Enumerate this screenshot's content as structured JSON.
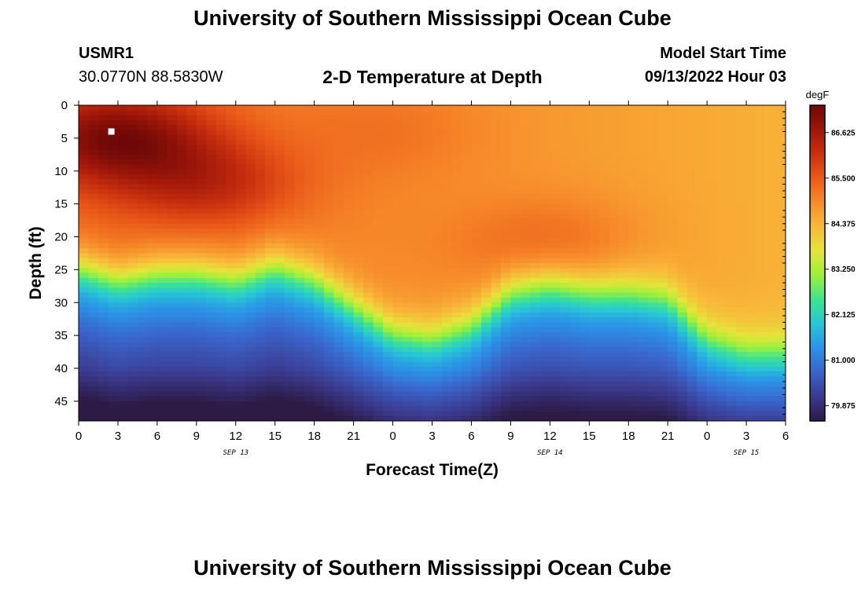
{
  "page": {
    "title": "University of Southern Mississippi Ocean Cube",
    "footer_title": "University of Southern Mississippi Ocean Cube",
    "station_id": "USMR1",
    "coordinates": "30.0770N  88.5830W",
    "subtitle": "2-D Temperature at Depth",
    "model_start_label": "Model Start Time",
    "model_start_value": "09/13/2022 Hour 03"
  },
  "chart_data": {
    "type": "heatmap",
    "title": "2-D Temperature at Depth",
    "xlabel": "Forecast Time(Z)",
    "ylabel": "Depth (ft)",
    "x_ticks": [
      "0",
      "3",
      "6",
      "9",
      "12",
      "15",
      "18",
      "21",
      "0",
      "3",
      "6",
      "9",
      "12",
      "15",
      "18",
      "21",
      "0",
      "3",
      "6"
    ],
    "x_range_hours": [
      0,
      54
    ],
    "date_labels": [
      {
        "label": "SEP 13",
        "hour": 12
      },
      {
        "label": "SEP 14",
        "hour": 36
      },
      {
        "label": "SEP 15",
        "hour": 51
      }
    ],
    "y_ticks": [
      0,
      5,
      10,
      15,
      20,
      25,
      30,
      35,
      40,
      45
    ],
    "y_range": [
      0,
      48
    ],
    "colorbar": {
      "unit": "degF",
      "labels": [
        "86.625",
        "85.500",
        "84.375",
        "83.250",
        "82.125",
        "81.000",
        "79.875"
      ],
      "min": 79.5,
      "max": 87.3,
      "stops": [
        "#2d1a45",
        "#3b3a8e",
        "#3a63c9",
        "#2b93e6",
        "#26c6d6",
        "#3fe38e",
        "#9cf03a",
        "#e6e43a",
        "#f8b93a",
        "#f78a2a",
        "#ea5a19",
        "#c9300e",
        "#9e1609",
        "#6e0808"
      ]
    },
    "marker": {
      "hour": 2.5,
      "depth": 4
    },
    "thermocline_depth_ft": [
      {
        "hour": 0,
        "depth": 25
      },
      {
        "hour": 3,
        "depth": 27
      },
      {
        "hour": 6,
        "depth": 26
      },
      {
        "hour": 9,
        "depth": 26
      },
      {
        "hour": 12,
        "depth": 27
      },
      {
        "hour": 15,
        "depth": 25
      },
      {
        "hour": 18,
        "depth": 27
      },
      {
        "hour": 21,
        "depth": 31
      },
      {
        "hour": 24,
        "depth": 35
      },
      {
        "hour": 27,
        "depth": 36
      },
      {
        "hour": 30,
        "depth": 34
      },
      {
        "hour": 33,
        "depth": 29
      },
      {
        "hour": 36,
        "depth": 28
      },
      {
        "hour": 39,
        "depth": 29
      },
      {
        "hour": 42,
        "depth": 29
      },
      {
        "hour": 45,
        "depth": 30
      },
      {
        "hour": 48,
        "depth": 36
      },
      {
        "hour": 51,
        "depth": 38
      },
      {
        "hour": 54,
        "depth": 38
      }
    ],
    "hot_spots": [
      {
        "hour": 3,
        "depth": 5,
        "value": 87.2
      },
      {
        "hour": 10,
        "depth": 12,
        "value": 86.4
      },
      {
        "hour": 36,
        "depth": 21,
        "value": 85.9
      },
      {
        "hour": 24,
        "depth": 4,
        "value": 85.6
      }
    ]
  }
}
